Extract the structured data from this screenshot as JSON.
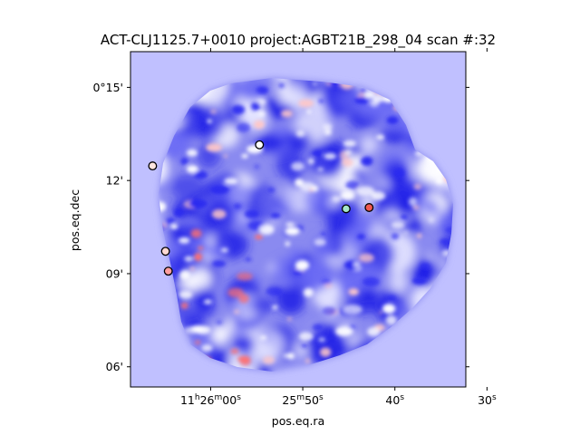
{
  "chart_data": {
    "type": "heatmap",
    "title": "ACT-CLJ1125.7+0010 project:AGBT21B_298_04 scan #:32",
    "xlabel": "pos.eq.ra",
    "ylabel": "pos.eq.dec",
    "x_ticks": [
      {
        "label_main": "11",
        "sup1": "h",
        "mid": "26",
        "sup2": "m",
        "tail": "00",
        "sup3": "s",
        "value_sec": 0
      },
      {
        "label_main": "25",
        "sup1": "m",
        "mid": "50",
        "sup2": "s",
        "tail": "",
        "sup3": "",
        "value_sec": -10
      },
      {
        "label_main": "40",
        "sup1": "s",
        "mid": "",
        "sup2": "",
        "tail": "",
        "sup3": "",
        "value_sec": -20
      },
      {
        "label_main": "30",
        "sup1": "s",
        "mid": "",
        "sup2": "",
        "tail": "",
        "sup3": "",
        "value_sec": -30
      }
    ],
    "y_ticks": [
      {
        "label": "0°15'",
        "value_arcmin": 15
      },
      {
        "label": "12'",
        "value_arcmin": 12
      },
      {
        "label": "09'",
        "value_arcmin": 9
      },
      {
        "label": "06'",
        "value_arcmin": 6
      }
    ],
    "xlim_sec": [
      8.7,
      -27.7
    ],
    "ylim_arcmin": [
      5.35,
      16.15
    ],
    "colormap": {
      "negative": "#0000ff",
      "zero": "#ffffff",
      "positive": "#ff0000",
      "background": "#c0c0ff"
    },
    "sources": [
      {
        "ra_offset_sec": 6.3,
        "dec_arcmin": 12.47,
        "fill": "#ffe6e0"
      },
      {
        "ra_offset_sec": -5.3,
        "dec_arcmin": 13.15,
        "fill": "#ffffff"
      },
      {
        "ra_offset_sec": 4.9,
        "dec_arcmin": 9.72,
        "fill": "#ffd9d4"
      },
      {
        "ra_offset_sec": 4.6,
        "dec_arcmin": 9.08,
        "fill": "#ff9f9f"
      },
      {
        "ra_offset_sec": -14.7,
        "dec_arcmin": 11.09,
        "fill": "#a6e6c9"
      },
      {
        "ra_offset_sec": -17.2,
        "dec_arcmin": 11.13,
        "fill": "#f25a50"
      }
    ]
  }
}
